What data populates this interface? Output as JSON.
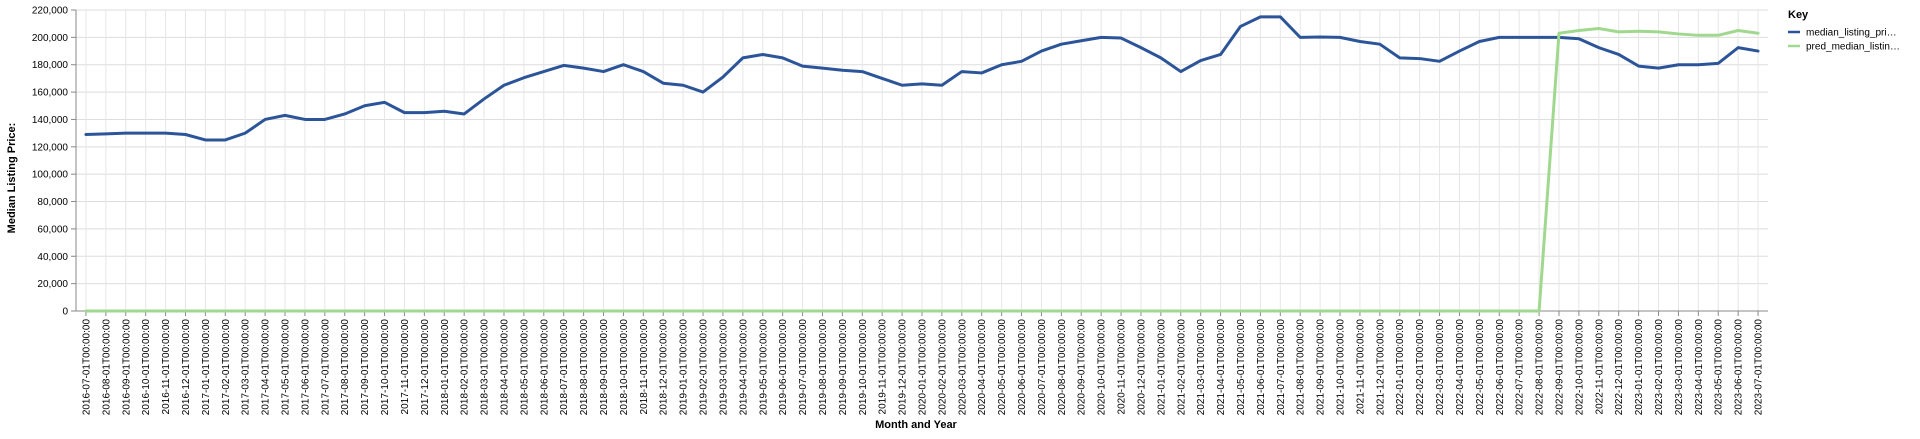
{
  "chart_data": {
    "type": "line",
    "xlabel": "Month and Year",
    "ylabel": "Median Listing Price:",
    "ylim": [
      0,
      220000
    ],
    "y_ticks": [
      0,
      20000,
      40000,
      60000,
      80000,
      100000,
      120000,
      140000,
      160000,
      180000,
      200000,
      220000
    ],
    "y_tick_labels": [
      "0",
      "20,000",
      "40,000",
      "60,000",
      "80,000",
      "100,000",
      "120,000",
      "140,000",
      "160,000",
      "180,000",
      "200,000",
      "220,000"
    ],
    "grid": true,
    "legend": {
      "title": "Key",
      "position": "right"
    },
    "x": [
      "2016-07-01T00:00:00",
      "2016-08-01T00:00:00",
      "2016-09-01T00:00:00",
      "2016-10-01T00:00:00",
      "2016-11-01T00:00:00",
      "2016-12-01T00:00:00",
      "2017-01-01T00:00:00",
      "2017-02-01T00:00:00",
      "2017-03-01T00:00:00",
      "2017-04-01T00:00:00",
      "2017-05-01T00:00:00",
      "2017-06-01T00:00:00",
      "2017-07-01T00:00:00",
      "2017-08-01T00:00:00",
      "2017-09-01T00:00:00",
      "2017-10-01T00:00:00",
      "2017-11-01T00:00:00",
      "2017-12-01T00:00:00",
      "2018-01-01T00:00:00",
      "2018-02-01T00:00:00",
      "2018-03-01T00:00:00",
      "2018-04-01T00:00:00",
      "2018-05-01T00:00:00",
      "2018-06-01T00:00:00",
      "2018-07-01T00:00:00",
      "2018-08-01T00:00:00",
      "2018-09-01T00:00:00",
      "2018-10-01T00:00:00",
      "2018-11-01T00:00:00",
      "2018-12-01T00:00:00",
      "2019-01-01T00:00:00",
      "2019-02-01T00:00:00",
      "2019-03-01T00:00:00",
      "2019-04-01T00:00:00",
      "2019-05-01T00:00:00",
      "2019-06-01T00:00:00",
      "2019-07-01T00:00:00",
      "2019-08-01T00:00:00",
      "2019-09-01T00:00:00",
      "2019-10-01T00:00:00",
      "2019-11-01T00:00:00",
      "2019-12-01T00:00:00",
      "2020-01-01T00:00:00",
      "2020-02-01T00:00:00",
      "2020-03-01T00:00:00",
      "2020-04-01T00:00:00",
      "2020-05-01T00:00:00",
      "2020-06-01T00:00:00",
      "2020-07-01T00:00:00",
      "2020-08-01T00:00:00",
      "2020-09-01T00:00:00",
      "2020-10-01T00:00:00",
      "2020-11-01T00:00:00",
      "2020-12-01T00:00:00",
      "2021-01-01T00:00:00",
      "2021-02-01T00:00:00",
      "2021-03-01T00:00:00",
      "2021-04-01T00:00:00",
      "2021-05-01T00:00:00",
      "2021-06-01T00:00:00",
      "2021-07-01T00:00:00",
      "2021-08-01T00:00:00",
      "2021-09-01T00:00:00",
      "2021-10-01T00:00:00",
      "2021-11-01T00:00:00",
      "2021-12-01T00:00:00",
      "2022-01-01T00:00:00",
      "2022-02-01T00:00:00",
      "2022-03-01T00:00:00",
      "2022-04-01T00:00:00",
      "2022-05-01T00:00:00",
      "2022-06-01T00:00:00",
      "2022-07-01T00:00:00",
      "2022-08-01T00:00:00",
      "2022-09-01T00:00:00",
      "2022-10-01T00:00:00",
      "2022-11-01T00:00:00",
      "2022-12-01T00:00:00",
      "2023-01-01T00:00:00",
      "2023-02-01T00:00:00",
      "2023-03-01T00:00:00",
      "2023-04-01T00:00:00",
      "2023-05-01T00:00:00",
      "2023-06-01T00:00:00",
      "2023-07-01T00:00:00"
    ],
    "series": [
      {
        "name": "median_listing_pri…",
        "color": "#2c5599",
        "values": [
          129000,
          129500,
          130000,
          130000,
          130000,
          129000,
          125000,
          125000,
          130000,
          140000,
          143000,
          140000,
          140000,
          144000,
          150000,
          152500,
          145000,
          145000,
          146000,
          144000,
          155000,
          165000,
          170500,
          175000,
          179500,
          177500,
          175000,
          180000,
          175000,
          166500,
          165000,
          160000,
          171000,
          185000,
          187500,
          185000,
          179000,
          177500,
          176000,
          175000,
          170000,
          165000,
          166000,
          165000,
          175000,
          174000,
          180000,
          182500,
          190000,
          195000,
          197500,
          200000,
          199500,
          192500,
          185000,
          175000,
          183000,
          187500,
          208000,
          215000,
          215000,
          200000,
          200300,
          200000,
          197000,
          195000,
          185000,
          184500,
          182500,
          190000,
          197000,
          200000,
          200000,
          200000,
          200000,
          199000,
          192500,
          187500,
          179000,
          177500,
          180000,
          180000,
          181000,
          192500,
          190000
        ]
      },
      {
        "name": "pred_median_listin…",
        "color": "#a0d88f",
        "values": [
          0,
          0,
          0,
          0,
          0,
          0,
          0,
          0,
          0,
          0,
          0,
          0,
          0,
          0,
          0,
          0,
          0,
          0,
          0,
          0,
          0,
          0,
          0,
          0,
          0,
          0,
          0,
          0,
          0,
          0,
          0,
          0,
          0,
          0,
          0,
          0,
          0,
          0,
          0,
          0,
          0,
          0,
          0,
          0,
          0,
          0,
          0,
          0,
          0,
          0,
          0,
          0,
          0,
          0,
          0,
          0,
          0,
          0,
          0,
          0,
          0,
          0,
          0,
          0,
          0,
          0,
          0,
          0,
          0,
          0,
          0,
          0,
          0,
          0,
          203000,
          205000,
          206500,
          204000,
          204500,
          204000,
          202500,
          201500,
          201500,
          205000,
          203000
        ]
      }
    ]
  }
}
